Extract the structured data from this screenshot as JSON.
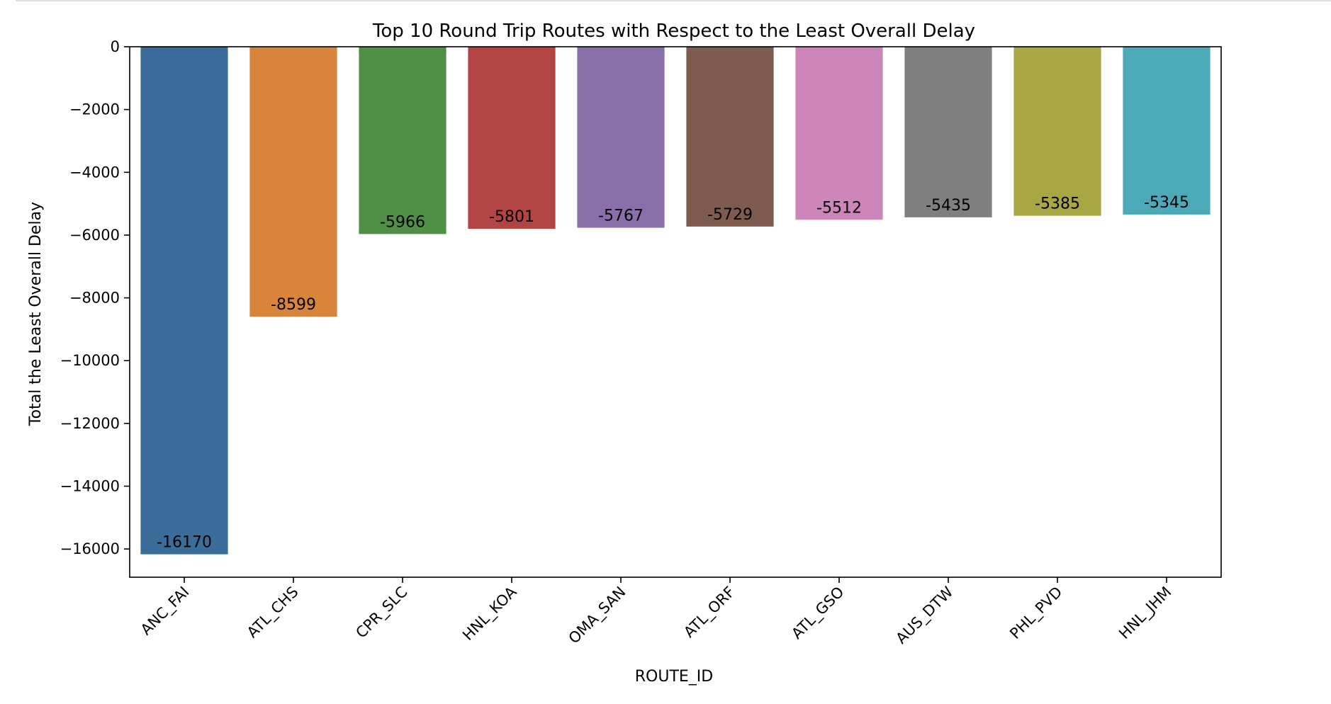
{
  "chart_data": {
    "type": "bar",
    "title": "Top 10 Round Trip Routes with Respect to the Least Overall Delay",
    "xlabel": "ROUTE_ID",
    "ylabel": "Total the Least Overall Delay",
    "categories": [
      "ANC_FAI",
      "ATL_CHS",
      "CPR_SLC",
      "HNL_KOA",
      "OMA_SAN",
      "ATL_ORF",
      "ATL_GSO",
      "AUS_DTW",
      "PHL_PVD",
      "HNL_JHM"
    ],
    "values": [
      -16170,
      -8599,
      -5966,
      -5801,
      -5767,
      -5729,
      -5512,
      -5435,
      -5385,
      -5345
    ],
    "data_labels": [
      "-16170",
      "-8599",
      "-5966",
      "-5801",
      "-5767",
      "-5729",
      "-5512",
      "-5435",
      "-5385",
      "-5345"
    ],
    "colors": [
      "#3a6d99",
      "#d9843b",
      "#4f8f46",
      "#b34444",
      "#8a70ab",
      "#7d5b4f",
      "#cc86b9",
      "#7f7f7f",
      "#a9a644",
      "#4ba9b8"
    ],
    "ylim": [
      -16900,
      0
    ],
    "yticks": [
      0,
      -2000,
      -4000,
      -6000,
      -8000,
      -10000,
      -12000,
      -14000,
      -16000
    ],
    "ytick_labels": [
      "0",
      "−2000",
      "−4000",
      "−6000",
      "−8000",
      "−10000",
      "−12000",
      "−14000",
      "−16000"
    ],
    "grid": false,
    "legend": "none"
  }
}
